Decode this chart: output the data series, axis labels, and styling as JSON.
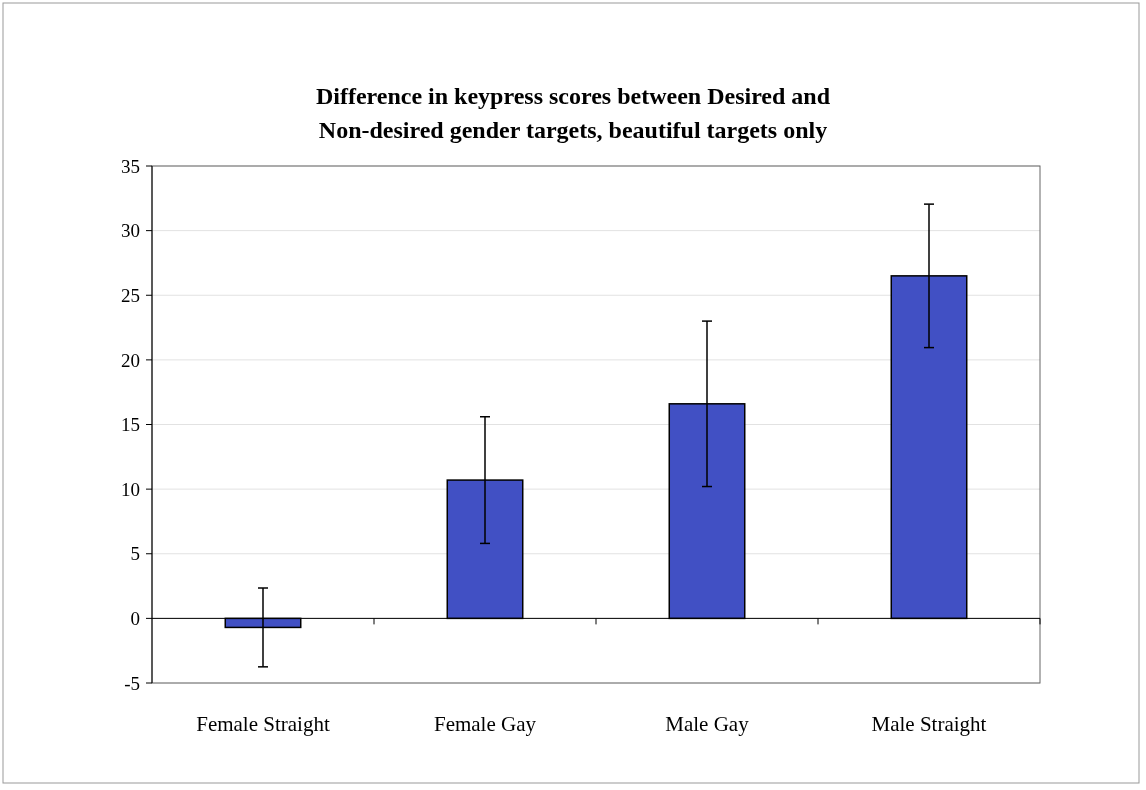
{
  "chart_data": {
    "type": "bar",
    "title": "Difference in keypress scores between Desired and\nNon-desired gender targets, beautiful targets only",
    "categories": [
      "Female Straight",
      "Female Gay",
      "Male Gay",
      "Male Straight"
    ],
    "values": [
      -0.7,
      10.7,
      16.6,
      26.5
    ],
    "errors": [
      3.05,
      4.9,
      6.4,
      5.55
    ],
    "color": "#4150c4",
    "ylim": [
      -5,
      35
    ],
    "yticks": [
      -5,
      0,
      5,
      10,
      15,
      20,
      25,
      30,
      35
    ],
    "grid": "y"
  }
}
